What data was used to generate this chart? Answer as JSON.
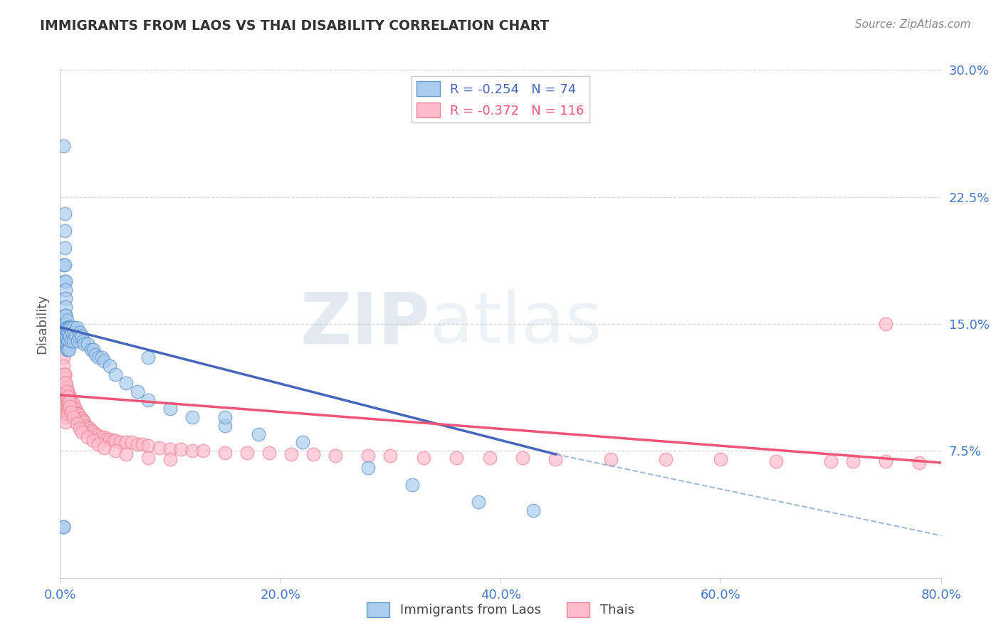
{
  "title": "IMMIGRANTS FROM LAOS VS THAI DISABILITY CORRELATION CHART",
  "source": "Source: ZipAtlas.com",
  "xlim": [
    0.0,
    0.8
  ],
  "ylim": [
    0.0,
    0.3
  ],
  "ytick_vals": [
    0.075,
    0.15,
    0.225,
    0.3
  ],
  "xtick_vals": [
    0.0,
    0.2,
    0.4,
    0.6,
    0.8
  ],
  "laos_R": -0.254,
  "laos_N": 74,
  "thai_R": -0.372,
  "thai_N": 116,
  "legend_label_laos": "Immigrants from Laos",
  "legend_label_thai": "Thais",
  "watermark_zip": "ZIP",
  "watermark_atlas": "atlas",
  "blue_scatter_face": "#AACCEE",
  "blue_scatter_edge": "#6699CC",
  "pink_scatter_face": "#FFBBCC",
  "pink_scatter_edge": "#EE8899",
  "blue_line_color": "#4466BB",
  "pink_line_color": "#EE5577",
  "blue_dashed_color": "#88AACC",
  "grid_color": "#CCCCCC",
  "title_color": "#333333",
  "axis_tick_color": "#4477CC",
  "ylabel": "Disability",
  "ylabel_color": "#555555",
  "legend_text_blue": "#4466BB",
  "legend_text_pink": "#EE5577",
  "source_color": "#888888",
  "laos_x_data": [
    0.003,
    0.003,
    0.004,
    0.004,
    0.004,
    0.004,
    0.004,
    0.005,
    0.005,
    0.005,
    0.005,
    0.005,
    0.005,
    0.005,
    0.005,
    0.005,
    0.005,
    0.005,
    0.005,
    0.006,
    0.006,
    0.006,
    0.006,
    0.006,
    0.006,
    0.007,
    0.007,
    0.007,
    0.007,
    0.008,
    0.008,
    0.008,
    0.008,
    0.009,
    0.009,
    0.01,
    0.01,
    0.011,
    0.012,
    0.012,
    0.013,
    0.014,
    0.015,
    0.016,
    0.017,
    0.018,
    0.02,
    0.021,
    0.022,
    0.025,
    0.028,
    0.03,
    0.032,
    0.035,
    0.038,
    0.04,
    0.045,
    0.05,
    0.06,
    0.07,
    0.08,
    0.1,
    0.12,
    0.15,
    0.18,
    0.22,
    0.28,
    0.32,
    0.38,
    0.43,
    0.003,
    0.003,
    0.08,
    0.15
  ],
  "laos_y_data": [
    0.255,
    0.185,
    0.215,
    0.205,
    0.195,
    0.185,
    0.175,
    0.175,
    0.17,
    0.165,
    0.16,
    0.155,
    0.155,
    0.15,
    0.148,
    0.145,
    0.143,
    0.14,
    0.138,
    0.152,
    0.148,
    0.145,
    0.142,
    0.138,
    0.135,
    0.148,
    0.145,
    0.14,
    0.135,
    0.148,
    0.145,
    0.14,
    0.135,
    0.148,
    0.143,
    0.148,
    0.14,
    0.145,
    0.148,
    0.14,
    0.145,
    0.143,
    0.148,
    0.14,
    0.143,
    0.145,
    0.143,
    0.14,
    0.138,
    0.138,
    0.135,
    0.135,
    0.132,
    0.13,
    0.13,
    0.128,
    0.125,
    0.12,
    0.115,
    0.11,
    0.105,
    0.1,
    0.095,
    0.09,
    0.085,
    0.08,
    0.065,
    0.055,
    0.045,
    0.04,
    0.03,
    0.03,
    0.13,
    0.095
  ],
  "thai_x_data": [
    0.003,
    0.003,
    0.003,
    0.004,
    0.004,
    0.004,
    0.004,
    0.005,
    0.005,
    0.005,
    0.005,
    0.005,
    0.005,
    0.005,
    0.005,
    0.005,
    0.006,
    0.006,
    0.006,
    0.006,
    0.007,
    0.007,
    0.007,
    0.007,
    0.007,
    0.008,
    0.008,
    0.008,
    0.009,
    0.009,
    0.01,
    0.01,
    0.01,
    0.011,
    0.011,
    0.012,
    0.012,
    0.013,
    0.013,
    0.014,
    0.015,
    0.015,
    0.016,
    0.017,
    0.018,
    0.019,
    0.02,
    0.021,
    0.022,
    0.023,
    0.025,
    0.027,
    0.028,
    0.03,
    0.032,
    0.035,
    0.037,
    0.04,
    0.042,
    0.045,
    0.048,
    0.05,
    0.055,
    0.06,
    0.065,
    0.07,
    0.075,
    0.08,
    0.09,
    0.1,
    0.11,
    0.12,
    0.13,
    0.15,
    0.17,
    0.19,
    0.21,
    0.23,
    0.25,
    0.28,
    0.3,
    0.33,
    0.36,
    0.39,
    0.42,
    0.45,
    0.5,
    0.55,
    0.6,
    0.65,
    0.7,
    0.72,
    0.75,
    0.78,
    0.003,
    0.003,
    0.004,
    0.005,
    0.006,
    0.007,
    0.008,
    0.009,
    0.01,
    0.012,
    0.015,
    0.018,
    0.02,
    0.025,
    0.03,
    0.035,
    0.04,
    0.05,
    0.06,
    0.08,
    0.1,
    0.75
  ],
  "thai_y_data": [
    0.12,
    0.115,
    0.11,
    0.12,
    0.115,
    0.11,
    0.105,
    0.115,
    0.11,
    0.108,
    0.105,
    0.103,
    0.1,
    0.098,
    0.095,
    0.092,
    0.112,
    0.108,
    0.105,
    0.1,
    0.11,
    0.107,
    0.104,
    0.1,
    0.097,
    0.108,
    0.105,
    0.1,
    0.107,
    0.103,
    0.105,
    0.102,
    0.098,
    0.104,
    0.1,
    0.103,
    0.098,
    0.1,
    0.096,
    0.1,
    0.098,
    0.094,
    0.097,
    0.096,
    0.094,
    0.092,
    0.094,
    0.093,
    0.092,
    0.09,
    0.089,
    0.088,
    0.087,
    0.086,
    0.085,
    0.084,
    0.083,
    0.083,
    0.082,
    0.082,
    0.081,
    0.081,
    0.08,
    0.08,
    0.08,
    0.079,
    0.079,
    0.078,
    0.077,
    0.076,
    0.076,
    0.075,
    0.075,
    0.074,
    0.074,
    0.074,
    0.073,
    0.073,
    0.072,
    0.072,
    0.072,
    0.071,
    0.071,
    0.071,
    0.071,
    0.07,
    0.07,
    0.07,
    0.07,
    0.069,
    0.069,
    0.069,
    0.069,
    0.068,
    0.13,
    0.125,
    0.12,
    0.115,
    0.11,
    0.107,
    0.104,
    0.101,
    0.098,
    0.095,
    0.091,
    0.088,
    0.086,
    0.083,
    0.081,
    0.079,
    0.077,
    0.075,
    0.073,
    0.071,
    0.07,
    0.15
  ]
}
